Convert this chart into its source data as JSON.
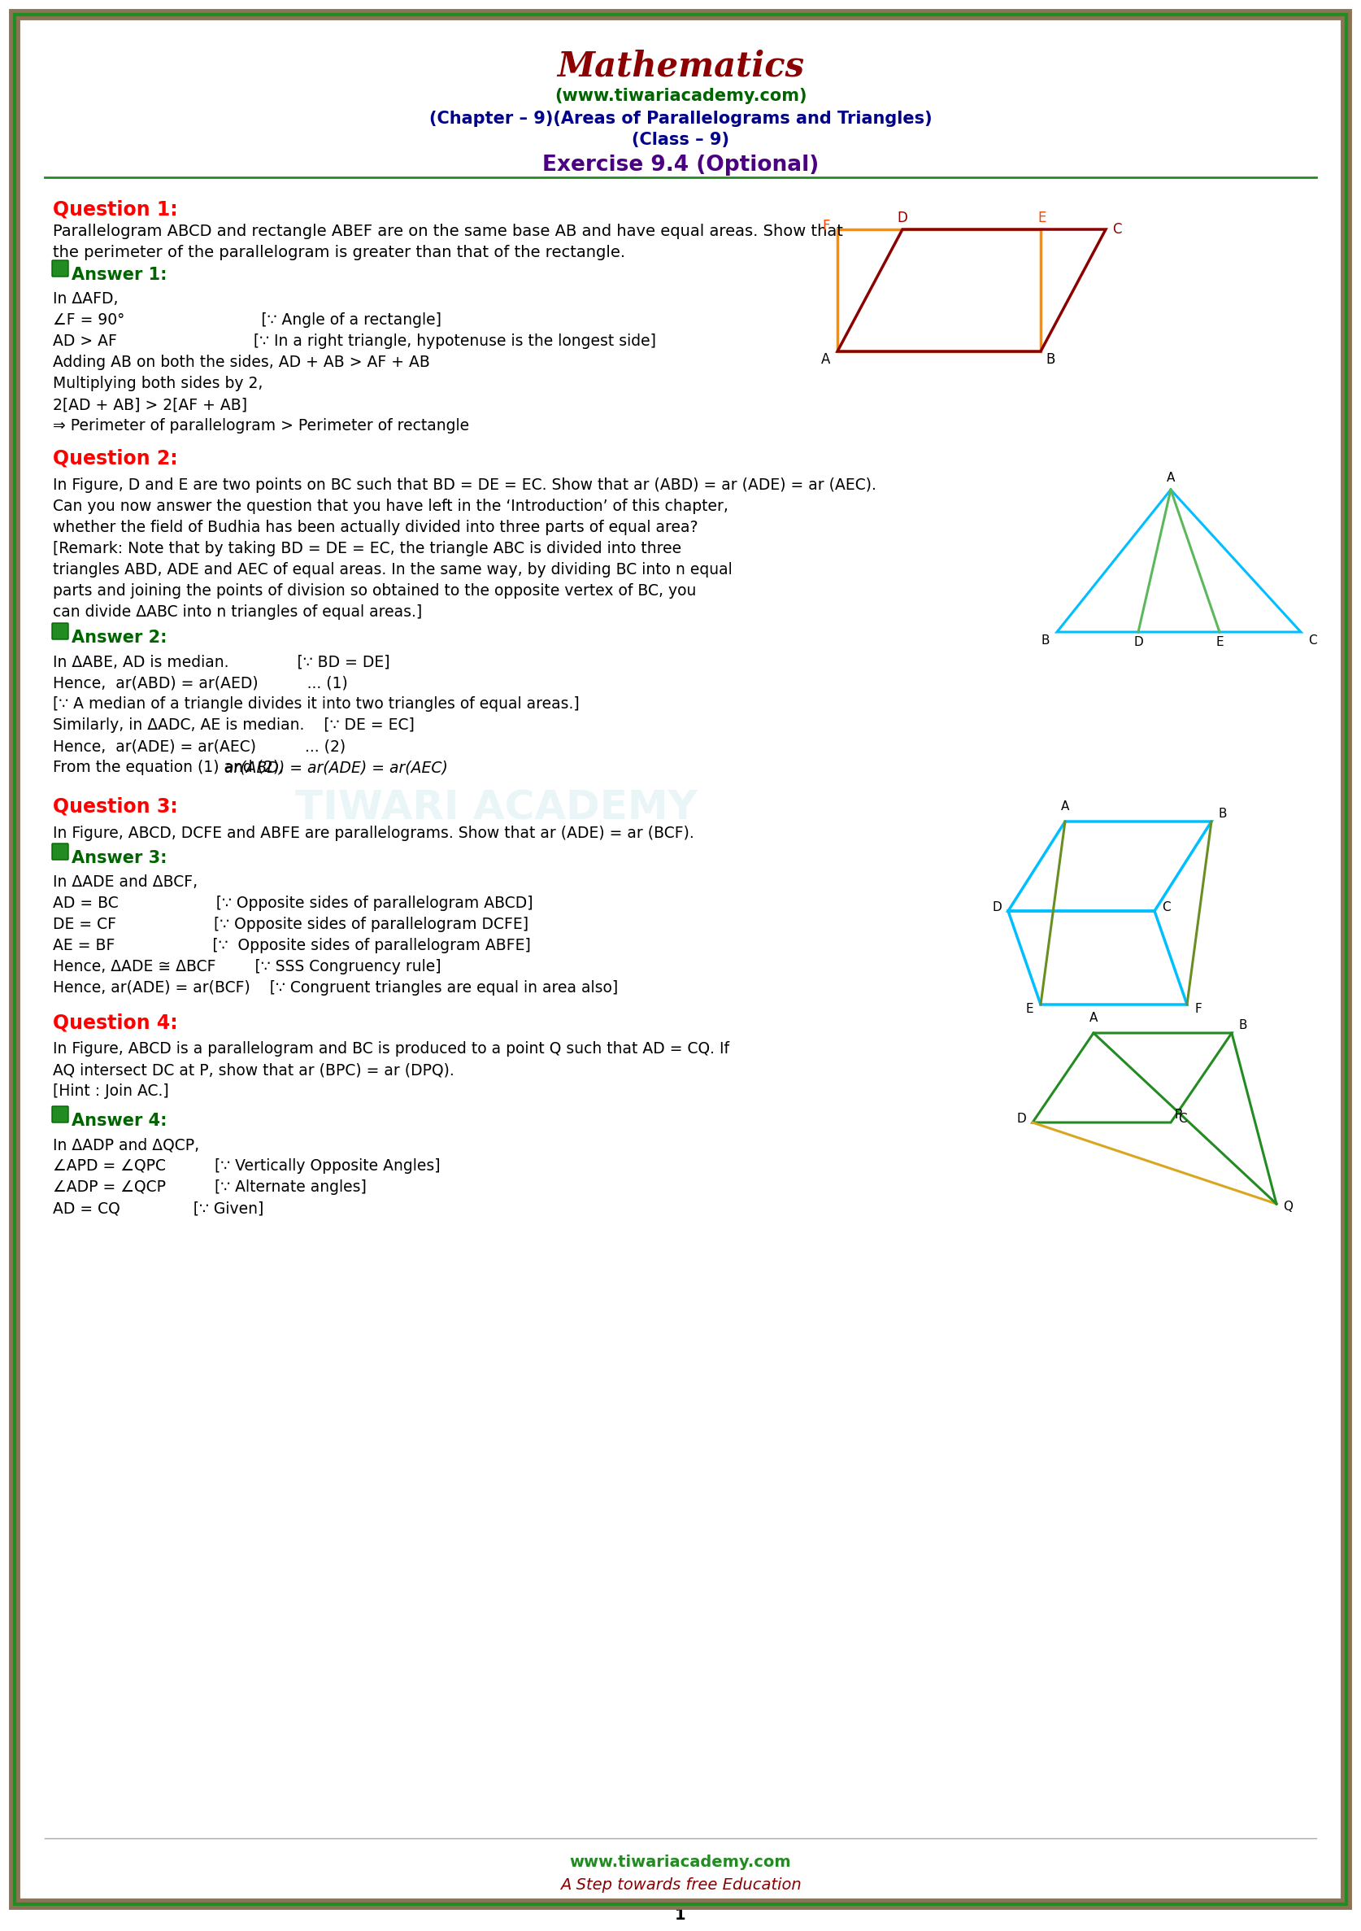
{
  "title": "Mathematics",
  "subtitle1": "(www.tiwariacademy.com)",
  "subtitle2": "(Chapter – 9)(Areas of Parallelograms and Triangles)",
  "subtitle3": "(Class – 9)",
  "subtitle4": "Exercise 9.4 (Optional)",
  "border_color_outer": "#8B7355",
  "border_color_inner": "#228B22",
  "bg_color": "#FFFFFF",
  "q1_title": "Question 1:",
  "q1_text": "Parallelogram ABCD and rectangle ABEF are on the same base AB and have equal areas. Show that the perimeter of the parallelogram is greater than that of the rectangle.",
  "a1_title": "Answer 1:",
  "a1_lines": [
    "In ΔAFD,",
    "∠F = 90°                            [∵ Angle of a rectangle]",
    "AD > AF                            [∵ In a right triangle, hypotenuse is the longest side]",
    "Adding AB on both the sides, AD + AB > AF + AB",
    "Multiplying both sides by 2,",
    "2[AD + AB] > 2[AF + AB]",
    "⇒ Perimeter of parallelogram > Perimeter of rectangle"
  ],
  "q2_title": "Question 2:",
  "q2_lines": [
    "In Figure, D and E are two points on BC such that BD = DE = EC. Show that ar (ABD) = ar (ADE) = ar (AEC).",
    "Can you now answer the question that you have left in the ‘Introduction’ of this chapter,",
    "whether the field of Budhia has been actually divided into three parts of equal area?",
    "[Remark: Note that by taking BD = DE = EC, the triangle ABC is divided into three",
    "triangles ABD, ADE and AEC of equal areas. In the same way, by dividing BC into n equal",
    "parts and joining the points of division so obtained to the opposite vertex of BC, you",
    "can divide ΔABC into n triangles of equal areas.]"
  ],
  "a2_title": "Answer 2:",
  "a2_lines": [
    "In ΔABE, AD is median.              [∵ BD = DE]",
    "Hence,  ar(ABD) = ar(AED)          ... (1)",
    "[∵ A median of a triangle divides it into two triangles of equal areas.]",
    "Similarly, in ΔADC, AE is median.    [∵ DE = EC]",
    "Hence,  ar(ADE) = ar(AEC)          ... (2)",
    "From the equation (1) and (2), ar(ABD) = ar(ADE) = ar(AEC)"
  ],
  "q3_title": "Question 3:",
  "q3_text": "In Figure, ABCD, DCFE and ABFE are parallelograms. Show that ar (ADE) = ar (BCF).",
  "a3_title": "Answer 3:",
  "a3_lines": [
    "In ΔADE and ΔBCF,",
    "AD = BC                    [∵ Opposite sides of parallelogram ABCD]",
    "DE = CF                    [∵ Opposite sides of parallelogram DCFE]",
    "AE = BF                    [∵  Opposite sides of parallelogram ABFE]",
    "Hence, ΔADE ≅ ΔBCF        [∵ SSS Congruency rule]",
    "Hence, ar(ADE) = ar(BCF)    [∵ Congruent triangles are equal in area also]"
  ],
  "q4_title": "Question 4:",
  "q4_lines": [
    "In Figure, ABCD is a parallelogram and BC is produced to a point Q such that AD = CQ. If",
    "AQ intersect DC at P, show that ar (BPC) = ar (DPQ).",
    "[Hint : Join AC.]"
  ],
  "a4_title": "Answer 4:",
  "a4_lines": [
    "In ΔADP and ΔQCP,",
    "∠APD = ∠QPC          [∵ Vertically Opposite Angles]",
    "∠ADP = ∠QCP          [∵ Alternate angles]",
    "AD = CQ               [∵ Given]"
  ],
  "footer1": "www.tiwariacademy.com",
  "footer2": "A Step towards free Education",
  "page_num": "1"
}
